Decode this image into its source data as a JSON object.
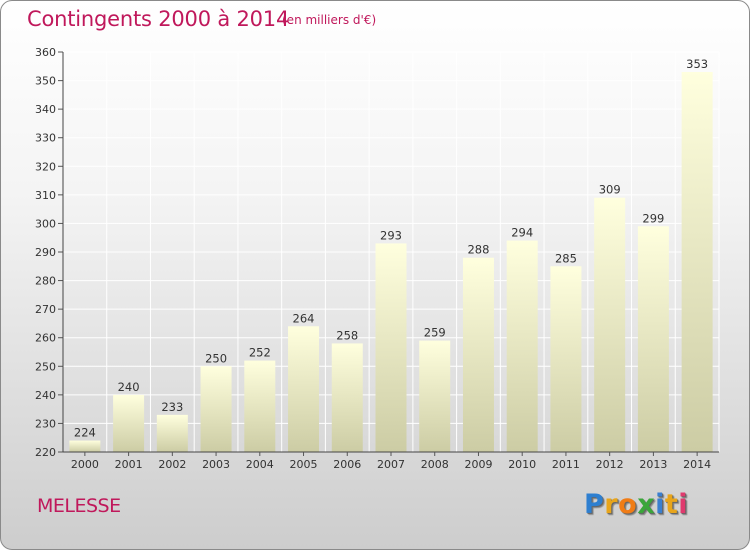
{
  "title": "Contingents 2000 à 2014",
  "subtitle": "(en milliers d'€)",
  "place": "MELESSE",
  "logo": {
    "letters": [
      "P",
      "r",
      "o",
      "x",
      "i",
      "t",
      "i"
    ],
    "colors": [
      "#2e7fd0",
      "#e8a51b",
      "#f07c16",
      "#3aa63a",
      "#3a7fd0",
      "#e8a51b",
      "#e03a6e"
    ]
  },
  "colors": {
    "accent": "#c0185b",
    "bar_top": "#ffffde",
    "bar_bottom": "#cccca4"
  },
  "chart_data": {
    "type": "bar",
    "categories": [
      "2000",
      "2001",
      "2002",
      "2003",
      "2004",
      "2005",
      "2006",
      "2007",
      "2008",
      "2009",
      "2010",
      "2011",
      "2012",
      "2013",
      "2014"
    ],
    "values": [
      224,
      240,
      233,
      250,
      252,
      264,
      258,
      293,
      259,
      288,
      294,
      285,
      309,
      299,
      353
    ],
    "title": "Contingents 2000 à 2014",
    "ylabel": "",
    "xlabel": "",
    "ylim": [
      220,
      360
    ],
    "yticks": [
      220,
      230,
      240,
      250,
      260,
      270,
      280,
      290,
      300,
      310,
      320,
      330,
      340,
      350,
      360
    ],
    "grid": true,
    "data_labels": true,
    "legend": "none"
  }
}
